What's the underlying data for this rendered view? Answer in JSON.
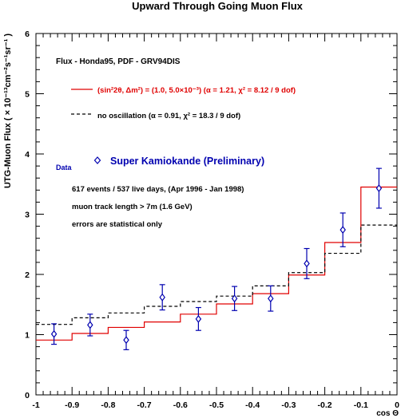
{
  "chart_data": {
    "type": "line",
    "title": "Upward Through Going Muon Flux",
    "xlabel": "cos Θ",
    "ylabel": "UTG-Muon Flux ( × 10⁻¹³cm⁻²s⁻¹sr⁻¹ )",
    "xlim": [
      -1,
      0
    ],
    "ylim": [
      0,
      6
    ],
    "x_ticks": [
      -1,
      -0.9,
      -0.8,
      -0.7,
      -0.6,
      -0.5,
      -0.4,
      -0.3,
      -0.2,
      -0.1,
      0
    ],
    "x_tick_labels": [
      "-1",
      "-0.9",
      "-0.8",
      "-0.7",
      "-0.6",
      "-0.5",
      "-0.4",
      "-0.3",
      "-0.2",
      "-0.1",
      "0"
    ],
    "y_ticks": [
      0,
      1,
      2,
      3,
      4,
      5,
      6
    ],
    "y_tick_labels": [
      "0",
      "1",
      "2",
      "3",
      "4",
      "5",
      "6"
    ],
    "bin_edges": [
      -1,
      -0.9,
      -0.8,
      -0.7,
      -0.6,
      -0.5,
      -0.4,
      -0.3,
      -0.2,
      -0.1,
      0
    ],
    "annotations": {
      "flux_line": "Flux - Honda95, PDF - GRV94DIS",
      "osc_line": "(sin²2θ, Δm²) = (1.0, 5.0×10⁻³) (α = 1.21,  χ² = 8.12 / 9 dof)",
      "noosc_line": "no oscillation (α = 0.91,  χ² = 18.3 / 9 dof)",
      "data_label": "Data",
      "data_name": "Super Kamiokande (Preliminary)",
      "info1": "617 events / 537 live days, (Apr 1996 - Jan 1998)",
      "info2": "muon track length > 7m (1.6 GeV)",
      "info3": "errors are statistical only"
    },
    "series": [
      {
        "kind": "histogram",
        "style": "solid",
        "color": "#e00000",
        "values": [
          0.91,
          1.02,
          1.12,
          1.21,
          1.34,
          1.51,
          1.68,
          1.99,
          2.53,
          3.45
        ]
      },
      {
        "kind": "histogram",
        "style": "dashed",
        "color": "#000000",
        "values": [
          1.17,
          1.28,
          1.36,
          1.47,
          1.55,
          1.64,
          1.81,
          2.03,
          2.35,
          2.82
        ]
      },
      {
        "kind": "points",
        "color": "#0000b0",
        "x": [
          -0.95,
          -0.85,
          -0.75,
          -0.65,
          -0.55,
          -0.45,
          -0.35,
          -0.25,
          -0.15,
          -0.05
        ],
        "y": [
          1.01,
          1.16,
          0.91,
          1.62,
          1.26,
          1.6,
          1.6,
          2.18,
          2.74,
          3.43
        ],
        "err": [
          0.17,
          0.18,
          0.16,
          0.21,
          0.19,
          0.2,
          0.21,
          0.25,
          0.28,
          0.33
        ]
      }
    ]
  }
}
